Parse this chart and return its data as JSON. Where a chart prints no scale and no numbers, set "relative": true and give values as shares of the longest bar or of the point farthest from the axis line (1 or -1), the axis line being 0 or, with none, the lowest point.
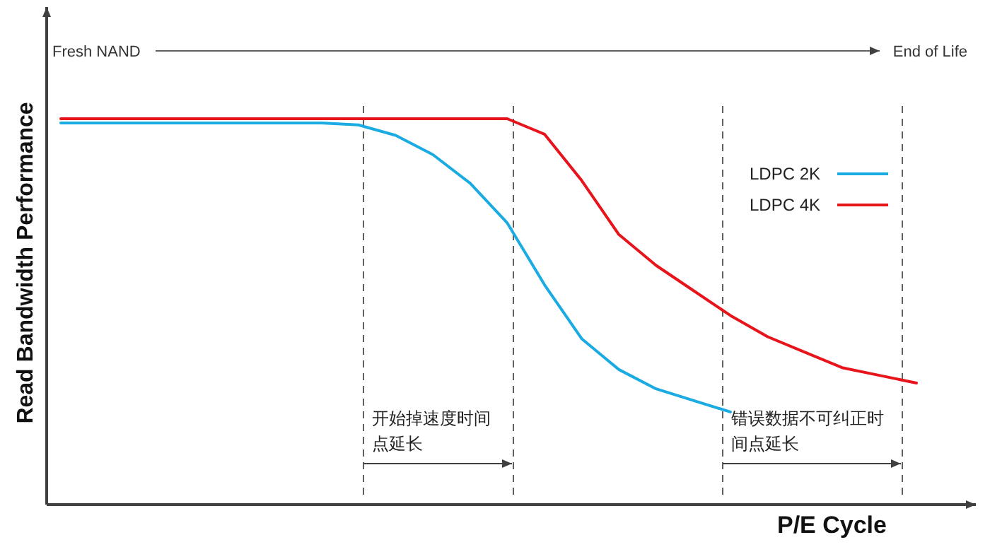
{
  "chart_data": {
    "type": "line",
    "relative": true,
    "xlabel": "P/E Cycle",
    "ylabel": "Read Bandwidth Performance",
    "legend": "right",
    "marker": "none",
    "line_style": "solid",
    "categories": [
      null,
      null,
      null,
      null,
      null,
      null,
      null,
      null,
      null,
      null,
      null,
      null,
      null,
      null,
      null,
      null,
      null,
      null,
      null,
      null,
      null,
      null,
      null,
      null
    ],
    "series": [
      {
        "name": "LDPC 2K",
        "color": "#1aabe2",
        "values": [
          0.989,
          0.989,
          0.989,
          0.989,
          0.989,
          0.989,
          0.989,
          0.989,
          0.984,
          0.957,
          0.907,
          0.833,
          0.73,
          0.57,
          0.43,
          0.35,
          0.3,
          0.27,
          0.24,
          null,
          null,
          null,
          null,
          null
        ]
      },
      {
        "name": "LDPC 4K",
        "color": "#e8141b",
        "values": [
          1.0,
          1.0,
          1.0,
          1.0,
          1.0,
          1.0,
          1.0,
          1.0,
          1.0,
          1.0,
          1.0,
          1.0,
          1.0,
          0.96,
          0.84,
          0.7,
          0.62,
          0.555,
          0.49,
          0.435,
          0.395,
          0.355,
          0.335,
          0.315
        ]
      }
    ],
    "annotations": [
      "Fresh NAND",
      "End of Life",
      "开始掉速度时间点延长",
      "错误数据不可纠正时间点延长"
    ]
  }
}
